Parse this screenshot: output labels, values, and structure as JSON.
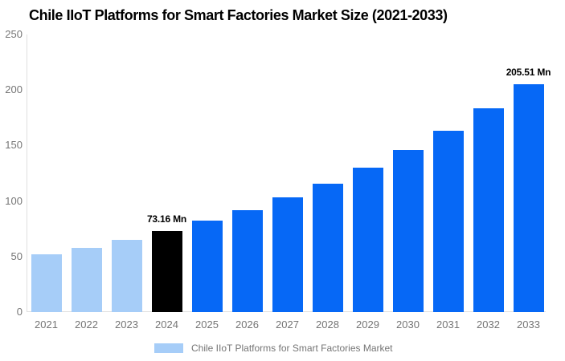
{
  "chart": {
    "title": "Chile IIoT Platforms for Smart Factories Market Size (2021-2033)"
  },
  "legend": {
    "label": "Chile IIoT Platforms for Smart Factories Market",
    "swatch_color": "#a6cdf8"
  },
  "chart_data": {
    "type": "bar",
    "title": "Chile IIoT Platforms for Smart Factories Market Size (2021-2033)",
    "xlabel": "",
    "ylabel": "",
    "categories": [
      "2021",
      "2022",
      "2023",
      "2024",
      "2025",
      "2026",
      "2027",
      "2028",
      "2029",
      "2030",
      "2031",
      "2032",
      "2033"
    ],
    "values": [
      51.8,
      58.1,
      65.2,
      73.16,
      82.1,
      92.1,
      103.3,
      115.8,
      129.9,
      145.7,
      163.4,
      183.3,
      205.51
    ],
    "unit": "Mn",
    "data_labels": [
      "",
      "",
      "",
      "73.16 Mn",
      "",
      "",
      "",
      "",
      "",
      "",
      "",
      "",
      "205.51 Mn"
    ],
    "bar_colors": [
      "#a6cdf8",
      "#a6cdf8",
      "#a6cdf8",
      "#000000",
      "#0668f6",
      "#0668f6",
      "#0668f6",
      "#0668f6",
      "#0668f6",
      "#0668f6",
      "#0668f6",
      "#0668f6",
      "#0668f6"
    ],
    "ylim": [
      0,
      250
    ],
    "yticks": [
      0,
      50,
      100,
      150,
      200,
      250
    ],
    "grid": false,
    "legend_position": "bottom",
    "colors": {
      "historical": "#a6cdf8",
      "highlight": "#000000",
      "forecast": "#0668f6",
      "axis_line": "#e0e0e0",
      "tick_text": "#757575"
    }
  }
}
